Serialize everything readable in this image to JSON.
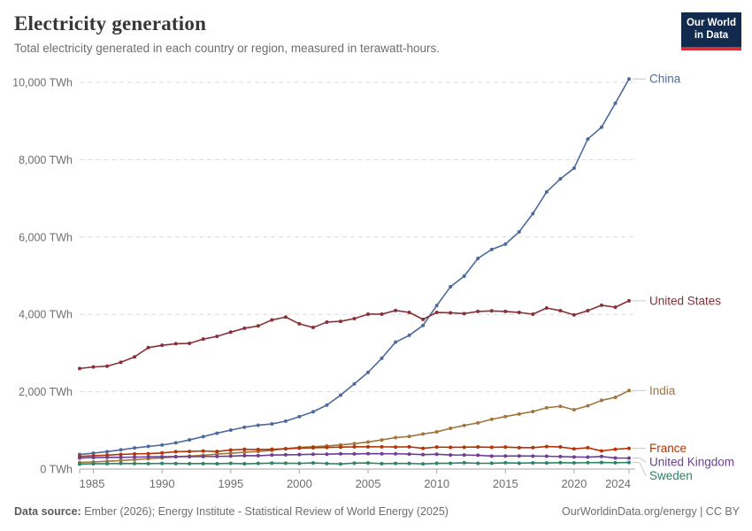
{
  "header": {
    "title": "Electricity generation",
    "subtitle": "Total electricity generated in each country or region, measured in terawatt-hours."
  },
  "logo": {
    "line1": "Our World",
    "line2": "in Data"
  },
  "chart_data": {
    "type": "line",
    "title": "Electricity generation",
    "ylabel": "TWh",
    "ylim": [
      0,
      10000
    ],
    "yticks": [
      0,
      2000,
      4000,
      6000,
      8000,
      10000
    ],
    "ytick_suffix": " TWh",
    "xticks": [
      1985,
      1990,
      1995,
      2000,
      2005,
      2010,
      2015,
      2020,
      2024
    ],
    "grid": "horizontal-dashed",
    "legend_position": "right-end-labels",
    "x": [
      1984,
      1985,
      1986,
      1987,
      1988,
      1989,
      1990,
      1991,
      1992,
      1993,
      1994,
      1995,
      1996,
      1997,
      1998,
      1999,
      2000,
      2001,
      2002,
      2003,
      2004,
      2005,
      2006,
      2007,
      2008,
      2009,
      2010,
      2011,
      2012,
      2013,
      2014,
      2015,
      2016,
      2017,
      2018,
      2019,
      2020,
      2021,
      2022,
      2023,
      2024
    ],
    "series": [
      {
        "name": "China",
        "color": "#4C6A9C",
        "values": [
          377,
          411,
          450,
          497,
          545,
          585,
          621,
          678,
          754,
          839,
          928,
          1007,
          1081,
          1134,
          1166,
          1239,
          1356,
          1481,
          1654,
          1911,
          2203,
          2500,
          2866,
          3282,
          3457,
          3714,
          4228,
          4713,
          4988,
          5447,
          5678,
          5815,
          6133,
          6604,
          7166,
          7503,
          7779,
          8534,
          8840,
          9456,
          10087
        ]
      },
      {
        "name": "United States",
        "color": "#883039",
        "values": [
          2600,
          2640,
          2660,
          2760,
          2900,
          3140,
          3200,
          3240,
          3250,
          3360,
          3430,
          3540,
          3640,
          3700,
          3855,
          3930,
          3755,
          3660,
          3800,
          3820,
          3890,
          4005,
          4005,
          4100,
          4050,
          3870,
          4050,
          4040,
          4020,
          4075,
          4090,
          4075,
          4050,
          4005,
          4165,
          4095,
          3985,
          4095,
          4235,
          4185,
          4350
        ]
      },
      {
        "name": "India",
        "color": "#A0763C",
        "values": [
          170,
          183,
          201,
          220,
          241,
          266,
          289,
          315,
          336,
          356,
          385,
          410,
          433,
          456,
          483,
          527,
          561,
          576,
          597,
          624,
          657,
          699,
          753,
          813,
          843,
          908,
          960,
          1053,
          1128,
          1193,
          1287,
          1357,
          1423,
          1487,
          1585,
          1623,
          1533,
          1635,
          1775,
          1853,
          2030
        ]
      },
      {
        "name": "France",
        "color": "#B13507",
        "values": [
          326,
          344,
          360,
          378,
          392,
          398,
          417,
          448,
          456,
          466,
          454,
          493,
          511,
          505,
          511,
          524,
          540,
          550,
          559,
          567,
          574,
          576,
          575,
          570,
          575,
          536,
          569,
          562,
          564,
          571,
          563,
          568,
          553,
          554,
          582,
          571,
          522,
          551,
          468,
          512,
          536
        ]
      },
      {
        "name": "United Kingdom",
        "color": "#6D3E91",
        "values": [
          285,
          298,
          302,
          302,
          309,
          314,
          318,
          322,
          321,
          323,
          326,
          334,
          347,
          345,
          362,
          368,
          374,
          382,
          384,
          395,
          391,
          398,
          396,
          395,
          387,
          374,
          382,
          364,
          363,
          357,
          336,
          337,
          338,
          335,
          332,
          323,
          312,
          308,
          325,
          285,
          283
        ]
      },
      {
        "name": "Sweden",
        "color": "#2C8465",
        "values": [
          127,
          137,
          139,
          145,
          142,
          141,
          146,
          143,
          141,
          141,
          138,
          148,
          136,
          145,
          154,
          151,
          146,
          158,
          143,
          133,
          152,
          158,
          140,
          145,
          146,
          134,
          148,
          150,
          162,
          149,
          151,
          162,
          152,
          160,
          158,
          165,
          159,
          166,
          170,
          163,
          170
        ]
      }
    ]
  },
  "footer": {
    "datasource_label": "Data source:",
    "datasource_text": " Ember (2026); Energy Institute - Statistical Review of World Energy (2025)",
    "attribution": "OurWorldinData.org/energy | CC BY"
  }
}
